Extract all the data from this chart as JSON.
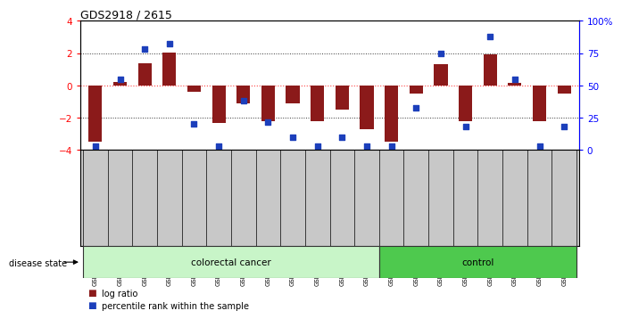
{
  "title": "GDS2918 / 2615",
  "samples": [
    "GSM112207",
    "GSM112208",
    "GSM112299",
    "GSM112300",
    "GSM112301",
    "GSM112302",
    "GSM112303",
    "GSM112304",
    "GSM112305",
    "GSM112306",
    "GSM112307",
    "GSM112308",
    "GSM112309",
    "GSM112310",
    "GSM112311",
    "GSM112312",
    "GSM112313",
    "GSM112314",
    "GSM112315",
    "GSM112316"
  ],
  "log_ratio": [
    -3.5,
    0.2,
    1.4,
    2.05,
    -0.4,
    -2.3,
    -1.1,
    -2.2,
    -1.1,
    -2.2,
    -1.5,
    -2.7,
    -3.5,
    -0.5,
    1.3,
    -2.2,
    1.9,
    0.15,
    -2.2,
    -0.5
  ],
  "percentile_rank": [
    3,
    55,
    78,
    82,
    20,
    3,
    38,
    22,
    10,
    3,
    10,
    3,
    3,
    33,
    75,
    18,
    88,
    55,
    3,
    18
  ],
  "colorectal_count": 12,
  "control_count": 8,
  "bar_color": "#8B1A1A",
  "dot_color": "#1C3FBB",
  "bg_color": "#FFFFFF",
  "left_ylim": [
    -4,
    4
  ],
  "right_ylim": [
    0,
    100
  ],
  "right_ticks": [
    0,
    25,
    50,
    75,
    100
  ],
  "right_tick_labels": [
    "0",
    "25",
    "50",
    "75",
    "100%"
  ],
  "colorectal_color": "#C8F5C8",
  "control_color": "#4EC94E",
  "label_box_color": "#C8C8C8",
  "zero_line_color": "#FF4444",
  "dotted_line_color": "#333333"
}
